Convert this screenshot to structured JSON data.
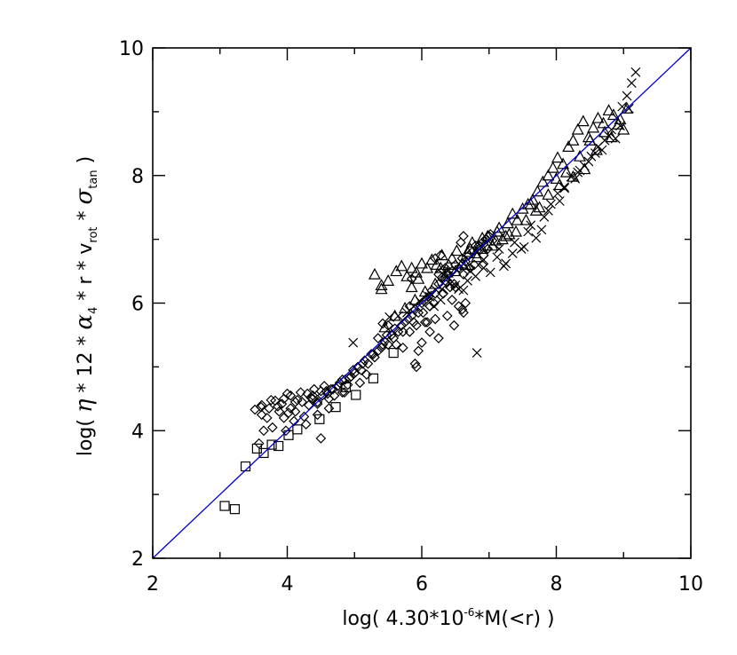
{
  "chart_data": {
    "type": "scatter",
    "title": "",
    "xlabel": {
      "prefix": "log(  4.30*10",
      "sup": "-6",
      "suffix": "*M(<r)  )"
    },
    "ylabel": {
      "p1": "log(  ",
      "eta": "η",
      "p2": " * 12 * ",
      "alpha": "α",
      "alpha_sub": "4",
      "p3": " * r * v",
      "v_sub": "rot",
      "p4": " * ",
      "sigma": "σ",
      "sigma_sub": "tan",
      "p5": "  )"
    },
    "xlim": [
      2,
      10
    ],
    "ylim": [
      2,
      10
    ],
    "xticks": [
      2,
      4,
      6,
      8,
      10
    ],
    "yticks": [
      2,
      4,
      6,
      8,
      10
    ],
    "xtick_labels": [
      "2",
      "4",
      "6",
      "8",
      "10"
    ],
    "ytick_labels": [
      "2",
      "4",
      "6",
      "8",
      "10"
    ],
    "grid": false,
    "reference_line": {
      "x": [
        2,
        10
      ],
      "y": [
        2,
        10
      ],
      "color": "#0000cc"
    },
    "series": [
      {
        "marker": "square",
        "x": [
          3.07,
          3.22,
          3.38,
          3.55,
          3.65,
          3.77,
          3.87,
          4.02,
          4.15,
          4.48,
          4.72,
          5.02,
          5.28,
          4.87,
          5.58
        ],
        "y": [
          2.82,
          2.77,
          3.44,
          3.72,
          3.65,
          3.78,
          3.76,
          3.93,
          4.02,
          4.18,
          4.37,
          4.56,
          4.82,
          4.68,
          5.22
        ]
      },
      {
        "marker": "diamond",
        "x": [
          3.52,
          3.58,
          3.61,
          3.65,
          3.7,
          3.73,
          3.78,
          3.82,
          3.86,
          3.92,
          3.95,
          4.02,
          4.05,
          4.1,
          4.15,
          4.2,
          4.25,
          4.3,
          4.35,
          4.4,
          4.45,
          4.5,
          4.55,
          4.6,
          4.62,
          4.65,
          4.7,
          4.78,
          4.82,
          4.86,
          4.9,
          4.95,
          5.0,
          5.05,
          5.1,
          5.15,
          5.2,
          5.25,
          5.3,
          5.35,
          5.4,
          5.45,
          5.5,
          5.55,
          5.6,
          5.65,
          5.7,
          5.75,
          5.8,
          5.85,
          5.9,
          5.95,
          6.0,
          6.05,
          6.1,
          6.15,
          6.2,
          6.25,
          6.3,
          6.35,
          6.4,
          6.45,
          6.5,
          6.55,
          6.6,
          6.65,
          6.7,
          6.75,
          6.8,
          6.85,
          6.9,
          6.95,
          7.0,
          7.05,
          3.88,
          4.05,
          4.22,
          4.38,
          4.52,
          4.68,
          4.82,
          4.98,
          5.12,
          5.28,
          5.42,
          5.58,
          5.72,
          5.88,
          6.02,
          6.18,
          6.32,
          6.48,
          6.62,
          6.78,
          6.92,
          3.76,
          3.95,
          4.12,
          4.32,
          4.58,
          4.75,
          5.18,
          5.62,
          5.92,
          6.12,
          6.42,
          6.72,
          6.98,
          4.28,
          4.45,
          4.92,
          5.35,
          5.82,
          6.25,
          6.58,
          4.5,
          5.92,
          6.6,
          6.9,
          3.62,
          3.98,
          4.62,
          5.48,
          5.72,
          6.35,
          6.62,
          7.02,
          4.38,
          5.08,
          6.2,
          6.5,
          6.85,
          4.12,
          4.85,
          5.5,
          6.08,
          6.45
        ],
        "y": [
          4.33,
          3.8,
          4.37,
          4.0,
          4.2,
          4.35,
          4.05,
          4.47,
          4.38,
          4.42,
          4.5,
          4.28,
          4.55,
          4.15,
          4.48,
          4.6,
          4.22,
          4.58,
          4.52,
          4.65,
          4.42,
          4.62,
          4.7,
          4.58,
          4.35,
          4.65,
          4.55,
          4.75,
          4.6,
          4.8,
          4.72,
          4.85,
          4.9,
          5.0,
          4.95,
          5.1,
          5.05,
          5.2,
          5.15,
          5.25,
          5.3,
          5.4,
          5.35,
          5.5,
          5.6,
          5.55,
          5.65,
          5.7,
          5.75,
          5.8,
          5.9,
          5.85,
          6.0,
          6.05,
          6.1,
          6.2,
          6.15,
          6.3,
          6.4,
          6.35,
          6.45,
          6.5,
          6.6,
          6.55,
          6.7,
          6.65,
          6.75,
          6.8,
          6.9,
          6.85,
          6.95,
          7.0,
          7.05,
          6.98,
          4.3,
          4.35,
          4.45,
          4.5,
          4.55,
          4.65,
          4.8,
          4.95,
          5.05,
          5.2,
          5.35,
          5.45,
          5.55,
          5.7,
          5.85,
          6.0,
          6.15,
          6.3,
          6.45,
          6.6,
          6.75,
          4.48,
          4.2,
          4.3,
          4.4,
          4.62,
          4.7,
          4.88,
          5.35,
          5.65,
          5.95,
          6.25,
          6.55,
          6.85,
          4.1,
          4.25,
          4.82,
          5.45,
          5.95,
          6.45,
          6.95,
          3.88,
          5.0,
          5.9,
          6.6,
          4.25,
          4.0,
          4.5,
          5.5,
          5.3,
          6.55,
          7.05,
          7.08,
          4.55,
          4.75,
          5.75,
          6.25,
          6.9,
          4.45,
          4.6,
          5.65,
          5.7,
          6.05
        ],
        "extra_x": [
          5.9,
          6.0,
          6.12,
          6.25,
          6.38,
          6.48,
          6.62,
          6.2,
          5.95,
          6.55,
          5.82,
          6.65,
          6.05,
          3.62,
          4.0,
          4.45,
          5.42,
          5.85,
          6.28,
          6.32
        ],
        "extra_y": [
          5.05,
          5.38,
          5.55,
          5.45,
          5.8,
          5.65,
          5.85,
          6.7,
          5.25,
          5.95,
          5.55,
          6.0,
          5.7,
          4.4,
          4.58,
          4.45,
          5.68,
          6.38,
          6.75,
          6.52
        ]
      },
      {
        "marker": "triangle",
        "x": [
          5.3,
          5.4,
          5.5,
          5.62,
          5.7,
          5.78,
          5.85,
          5.92,
          6.0,
          6.08,
          6.15,
          6.22,
          6.3,
          6.38,
          6.45,
          6.52,
          6.6,
          6.68,
          6.75,
          6.82,
          6.9,
          6.98,
          7.05,
          7.12,
          7.2,
          7.28,
          7.35,
          7.42,
          7.5,
          7.58,
          7.65,
          7.72,
          7.8,
          7.88,
          7.95,
          8.02,
          8.1,
          8.18,
          8.25,
          8.32,
          8.4,
          8.48,
          8.55,
          8.62,
          8.7,
          8.78,
          8.85,
          8.92,
          9.0,
          9.05,
          8.6,
          8.42,
          8.25,
          8.05,
          7.88,
          7.7,
          7.55,
          7.4,
          7.25,
          7.1,
          6.95,
          6.8,
          6.65,
          6.5,
          6.35,
          6.2,
          6.05,
          5.9,
          5.75,
          5.6,
          5.45,
          5.95,
          6.4,
          6.9,
          7.3,
          7.75,
          8.15,
          8.5,
          8.82,
          8.95,
          8.72,
          8.35,
          8.0,
          7.62,
          7.15,
          6.72,
          6.28,
          5.85,
          5.4
        ],
        "y": [
          6.45,
          6.28,
          6.35,
          6.5,
          6.58,
          6.42,
          6.55,
          6.48,
          6.62,
          6.55,
          6.68,
          6.6,
          6.75,
          6.48,
          6.7,
          6.82,
          6.62,
          6.8,
          6.95,
          6.72,
          6.85,
          7.05,
          6.9,
          7.12,
          7.0,
          7.25,
          7.4,
          7.3,
          7.48,
          7.55,
          7.62,
          7.75,
          7.9,
          8.0,
          8.12,
          8.28,
          8.18,
          8.45,
          8.55,
          8.72,
          8.85,
          8.6,
          8.75,
          8.9,
          8.82,
          9.02,
          8.95,
          8.8,
          8.72,
          9.05,
          8.4,
          8.1,
          7.98,
          7.85,
          7.7,
          7.45,
          7.3,
          7.12,
          7.05,
          6.98,
          6.9,
          6.78,
          6.6,
          6.5,
          6.42,
          6.3,
          6.18,
          6.05,
          5.92,
          5.8,
          5.62,
          6.38,
          6.6,
          7.02,
          7.08,
          7.5,
          8.05,
          8.55,
          8.6,
          8.88,
          8.68,
          8.3,
          7.95,
          7.55,
          7.18,
          6.85,
          6.55,
          6.25,
          6.22
        ]
      },
      {
        "marker": "x",
        "x": [
          6.82,
          4.98,
          5.52,
          5.78,
          5.98,
          6.12,
          6.28,
          6.42,
          6.55,
          6.68,
          6.8,
          6.92,
          7.02,
          7.12,
          7.25,
          7.35,
          7.48,
          7.58,
          7.7,
          7.82,
          7.92,
          8.02,
          8.12,
          8.22,
          8.32,
          8.42,
          8.52,
          8.62,
          8.72,
          8.82,
          8.9,
          8.98,
          9.05,
          9.12,
          9.18,
          9.08,
          8.95,
          8.78,
          8.58,
          8.35,
          8.12,
          7.88,
          7.62,
          7.38,
          7.15,
          6.92,
          6.72,
          6.5,
          6.3,
          6.08,
          5.88,
          5.65,
          7.22,
          7.52,
          7.78,
          8.05,
          8.28,
          8.48,
          8.68,
          8.88,
          6.62,
          6.38,
          6.18
        ],
        "y": [
          5.22,
          5.38,
          5.78,
          5.85,
          6.02,
          6.1,
          6.05,
          6.3,
          6.22,
          6.35,
          6.42,
          6.55,
          6.48,
          6.72,
          6.62,
          6.78,
          6.85,
          7.12,
          7.02,
          7.35,
          7.55,
          7.72,
          7.8,
          7.98,
          8.05,
          8.15,
          8.3,
          8.45,
          8.55,
          8.72,
          8.9,
          9.08,
          9.25,
          9.45,
          9.62,
          9.05,
          8.78,
          8.62,
          8.35,
          8.08,
          7.82,
          7.45,
          7.22,
          6.95,
          6.85,
          6.68,
          6.5,
          6.28,
          6.22,
          6.12,
          5.95,
          5.8,
          6.58,
          6.88,
          7.15,
          7.6,
          7.95,
          8.22,
          8.4,
          8.58,
          6.2,
          6.42,
          5.95
        ]
      }
    ]
  }
}
